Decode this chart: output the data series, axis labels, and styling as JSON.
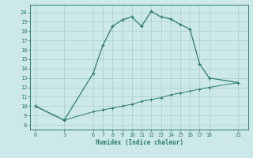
{
  "xlabel": "Humidex (Indice chaleur)",
  "line1_x": [
    0,
    3,
    6,
    7,
    8,
    9,
    10,
    11,
    12,
    13,
    14,
    15,
    16,
    17,
    18,
    21
  ],
  "line1_y": [
    10,
    8.5,
    13.5,
    16.5,
    18.5,
    19.2,
    19.5,
    18.5,
    20.1,
    19.5,
    19.3,
    18.7,
    18.2,
    14.5,
    13.0,
    12.5
  ],
  "line2_x": [
    0,
    3,
    6,
    7,
    8,
    9,
    10,
    11,
    12,
    13,
    14,
    15,
    16,
    17,
    18,
    21
  ],
  "line2_y": [
    10.0,
    8.5,
    9.4,
    9.6,
    9.8,
    10.0,
    10.2,
    10.5,
    10.7,
    10.9,
    11.2,
    11.4,
    11.6,
    11.8,
    12.0,
    12.5
  ],
  "line_color": "#2d7d6f",
  "bg_color": "#cce8e8",
  "grid_color": "#aacccc",
  "xticks": [
    0,
    3,
    6,
    7,
    8,
    9,
    10,
    11,
    12,
    13,
    14,
    15,
    16,
    17,
    18,
    21
  ],
  "yticks": [
    8,
    9,
    10,
    11,
    12,
    13,
    14,
    15,
    16,
    17,
    18,
    19,
    20
  ],
  "xlim": [
    -0.5,
    22
  ],
  "ylim": [
    7.5,
    20.8
  ]
}
